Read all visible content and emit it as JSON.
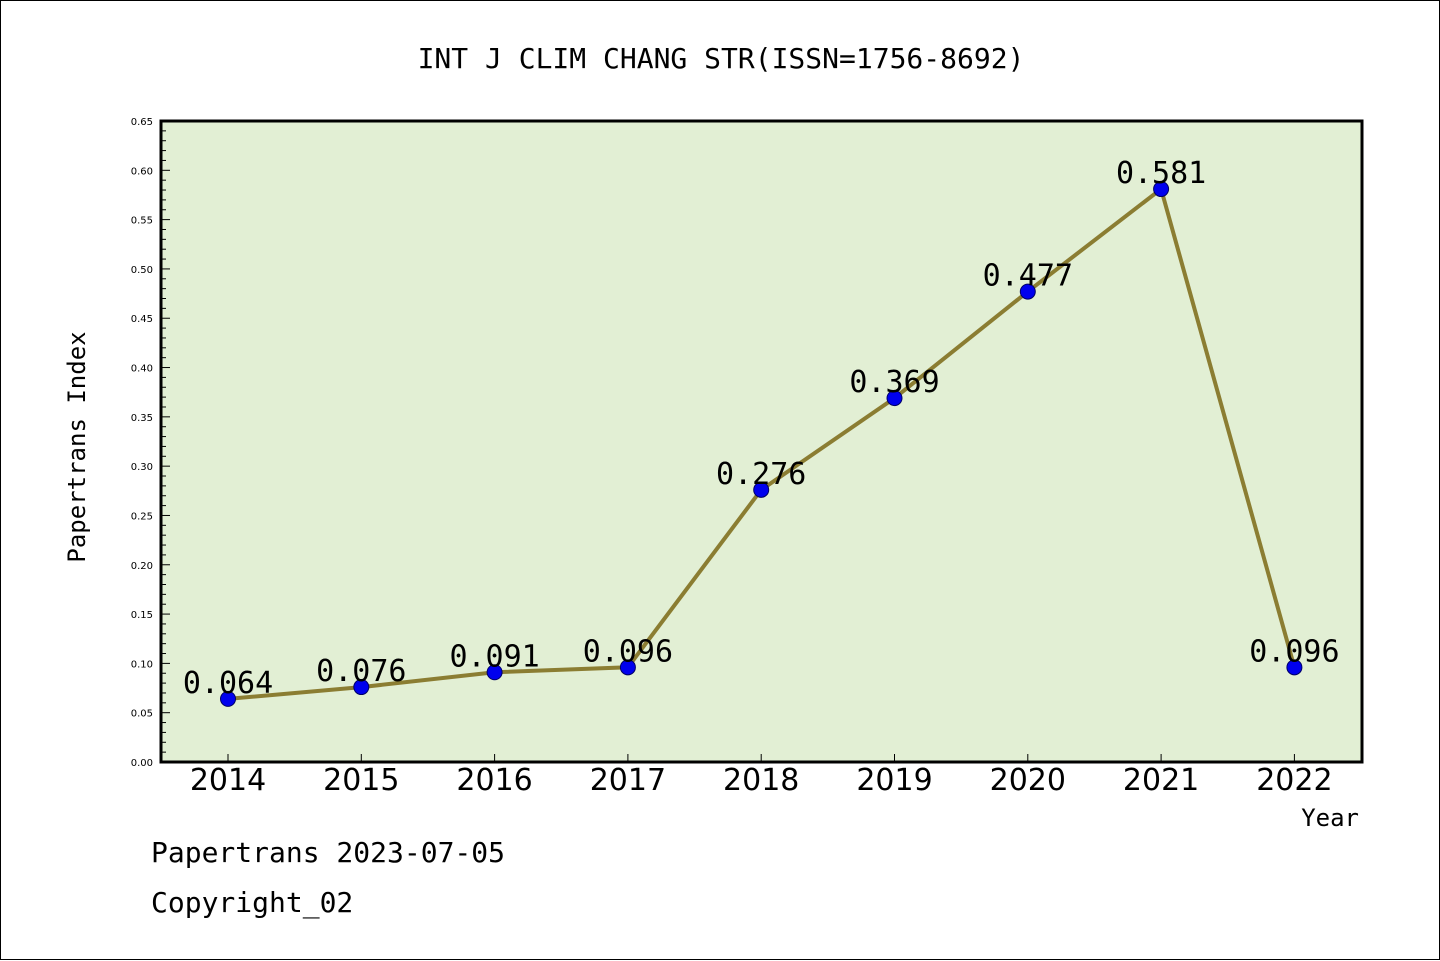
{
  "chart_data": {
    "type": "line",
    "title": "INT J CLIM CHANG STR(ISSN=1756-8692)",
    "xlabel": "Year",
    "ylabel": "Papertrans Index",
    "categories": [
      "2014",
      "2015",
      "2016",
      "2017",
      "2018",
      "2019",
      "2020",
      "2021",
      "2022"
    ],
    "values": [
      0.064,
      0.076,
      0.091,
      0.096,
      0.276,
      0.369,
      0.477,
      0.581,
      0.096
    ],
    "value_labels": [
      "0.064",
      "0.076",
      "0.091",
      "0.096",
      "0.276",
      "0.369",
      "0.477",
      "0.581",
      "0.096"
    ],
    "ylim": [
      0,
      0.65
    ],
    "yticks": [
      "0.00",
      "0.05",
      "0.10",
      "0.15",
      "0.20",
      "0.25",
      "0.30",
      "0.35",
      "0.40",
      "0.45",
      "0.50",
      "0.55",
      "0.60",
      "0.65"
    ],
    "grid": false,
    "colors": {
      "plot_background": "#e2efd4",
      "line": "#8b7d32",
      "marker": "#0000ee"
    }
  },
  "footer": {
    "source": "Papertrans 2023-07-05",
    "copyright": "Copyright_02"
  }
}
